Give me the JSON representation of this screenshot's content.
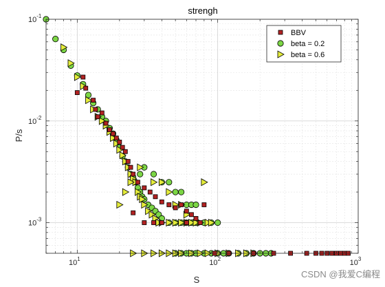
{
  "chart_data": {
    "type": "scatter",
    "title": "strengh",
    "xlabel": "S",
    "ylabel": "P/s",
    "xscale": "log",
    "yscale": "log",
    "xlim": [
      6,
      1000
    ],
    "ylim": [
      0.0005,
      0.1
    ],
    "grid": true,
    "legend_position": "top-right",
    "x_ticks": [
      {
        "base": "10",
        "exp": "1"
      },
      {
        "base": "10",
        "exp": "2"
      },
      {
        "base": "10",
        "exp": "3"
      }
    ],
    "y_ticks": [
      {
        "base": "10",
        "exp": "-3"
      },
      {
        "base": "10",
        "exp": "-2"
      },
      {
        "base": "10",
        "exp": "-1"
      }
    ],
    "series": [
      {
        "name": "BBV",
        "marker": "square",
        "color": "#b22222",
        "points": [
          [
            10,
            0.019
          ],
          [
            11,
            0.027
          ],
          [
            11.5,
            0.021
          ],
          [
            13,
            0.016
          ],
          [
            13.5,
            0.013
          ],
          [
            14,
            0.011
          ],
          [
            15,
            0.012
          ],
          [
            16,
            0.0095
          ],
          [
            17,
            0.0082
          ],
          [
            18,
            0.0075
          ],
          [
            19,
            0.0068
          ],
          [
            20,
            0.0062
          ],
          [
            21,
            0.0055
          ],
          [
            22,
            0.005
          ],
          [
            23,
            0.004
          ],
          [
            24,
            0.0035
          ],
          [
            25,
            0.003
          ],
          [
            27,
            0.0025
          ],
          [
            30,
            0.0022
          ],
          [
            33,
            0.002
          ],
          [
            36,
            0.0018
          ],
          [
            40,
            0.0016
          ],
          [
            45,
            0.0015
          ],
          [
            50,
            0.0014
          ],
          [
            55,
            0.0015
          ],
          [
            60,
            0.0013
          ],
          [
            65,
            0.0012
          ],
          [
            70,
            0.0011
          ],
          [
            75,
            0.001
          ],
          [
            80,
            0.0015
          ],
          [
            25,
            0.00125
          ],
          [
            30,
            0.001
          ],
          [
            35,
            0.001
          ],
          [
            40,
            0.001
          ],
          [
            60,
            0.001
          ],
          [
            95,
            0.0005
          ],
          [
            120,
            0.0005
          ],
          [
            180,
            0.0005
          ],
          [
            250,
            0.0005
          ],
          [
            330,
            0.0005
          ],
          [
            430,
            0.0005
          ],
          [
            500,
            0.0005
          ],
          [
            550,
            0.0005
          ],
          [
            600,
            0.0005
          ],
          [
            650,
            0.0005
          ],
          [
            700,
            0.0005
          ],
          [
            750,
            0.0005
          ],
          [
            800,
            0.0005
          ],
          [
            850,
            0.0005
          ]
        ]
      },
      {
        "name": "beta = 0.2",
        "marker": "circle",
        "color": "#7cd645",
        "points": [
          [
            6,
            0.1
          ],
          [
            7,
            0.064
          ],
          [
            8,
            0.05
          ],
          [
            9,
            0.035
          ],
          [
            10,
            0.028
          ],
          [
            11,
            0.023
          ],
          [
            12,
            0.018
          ],
          [
            13,
            0.015
          ],
          [
            14,
            0.013
          ],
          [
            15,
            0.011
          ],
          [
            16,
            0.01
          ],
          [
            17,
            0.0085
          ],
          [
            18,
            0.0075
          ],
          [
            19,
            0.0065
          ],
          [
            20,
            0.0055
          ],
          [
            21,
            0.0045
          ],
          [
            22,
            0.004
          ],
          [
            23,
            0.0035
          ],
          [
            24,
            0.003
          ],
          [
            25,
            0.0028
          ],
          [
            26,
            0.0025
          ],
          [
            27,
            0.0022
          ],
          [
            28,
            0.002
          ],
          [
            29,
            0.0018
          ],
          [
            30,
            0.0017
          ],
          [
            32,
            0.0015
          ],
          [
            34,
            0.0014
          ],
          [
            36,
            0.0013
          ],
          [
            38,
            0.0012
          ],
          [
            40,
            0.0011
          ],
          [
            45,
            0.001
          ],
          [
            50,
            0.001
          ],
          [
            55,
            0.001
          ],
          [
            60,
            0.001
          ],
          [
            65,
            0.001
          ],
          [
            70,
            0.001
          ],
          [
            80,
            0.001
          ],
          [
            90,
            0.001
          ],
          [
            100,
            0.001
          ],
          [
            30,
            0.0035
          ],
          [
            28,
            0.003
          ],
          [
            35,
            0.003
          ],
          [
            40,
            0.0025
          ],
          [
            45,
            0.0025
          ],
          [
            50,
            0.002
          ],
          [
            55,
            0.002
          ],
          [
            60,
            0.0015
          ],
          [
            65,
            0.0015
          ],
          [
            70,
            0.0015
          ],
          [
            50,
            0.0005
          ],
          [
            55,
            0.0005
          ],
          [
            60,
            0.0005
          ],
          [
            65,
            0.0005
          ],
          [
            70,
            0.0005
          ],
          [
            80,
            0.0005
          ],
          [
            90,
            0.0005
          ],
          [
            100,
            0.0005
          ],
          [
            110,
            0.0005
          ],
          [
            120,
            0.0005
          ],
          [
            140,
            0.0005
          ],
          [
            160,
            0.0005
          ],
          [
            180,
            0.0005
          ],
          [
            200,
            0.0005
          ],
          [
            220,
            0.0005
          ],
          [
            240,
            0.0005
          ]
        ]
      },
      {
        "name": "beta = 0.6",
        "marker": "triangle-right",
        "color": "#e4ec3a",
        "points": [
          [
            8,
            0.053
          ],
          [
            9,
            0.037
          ],
          [
            10,
            0.027
          ],
          [
            11,
            0.022
          ],
          [
            12,
            0.016
          ],
          [
            13,
            0.013
          ],
          [
            14,
            0.011
          ],
          [
            15,
            0.01
          ],
          [
            16,
            0.009
          ],
          [
            17,
            0.0078
          ],
          [
            18,
            0.0068
          ],
          [
            19,
            0.006
          ],
          [
            20,
            0.0052
          ],
          [
            21,
            0.0046
          ],
          [
            22,
            0.004
          ],
          [
            23,
            0.0035
          ],
          [
            24,
            0.003
          ],
          [
            25,
            0.0027
          ],
          [
            26,
            0.0025
          ],
          [
            27,
            0.002
          ],
          [
            28,
            0.0018
          ],
          [
            29,
            0.0017
          ],
          [
            30,
            0.0015
          ],
          [
            32,
            0.0013
          ],
          [
            34,
            0.0012
          ],
          [
            36,
            0.0011
          ],
          [
            38,
            0.001
          ],
          [
            40,
            0.001
          ],
          [
            45,
            0.001
          ],
          [
            50,
            0.001
          ],
          [
            55,
            0.001
          ],
          [
            60,
            0.001
          ],
          [
            65,
            0.001
          ],
          [
            70,
            0.001
          ],
          [
            75,
            0.001
          ],
          [
            80,
            0.0025
          ],
          [
            85,
            0.001
          ],
          [
            90,
            0.001
          ],
          [
            20,
            0.0015
          ],
          [
            24,
            0.0025
          ],
          [
            22,
            0.002
          ],
          [
            28,
            0.0035
          ],
          [
            35,
            0.0025
          ],
          [
            40,
            0.0025
          ],
          [
            45,
            0.002
          ],
          [
            50,
            0.0015
          ],
          [
            55,
            0.0015
          ],
          [
            60,
            0.0012
          ],
          [
            25,
            0.0005
          ],
          [
            30,
            0.0005
          ],
          [
            35,
            0.0005
          ],
          [
            40,
            0.0005
          ],
          [
            45,
            0.0005
          ],
          [
            50,
            0.0005
          ],
          [
            55,
            0.0005
          ],
          [
            65,
            0.0005
          ],
          [
            75,
            0.0005
          ],
          [
            85,
            0.0005
          ],
          [
            100,
            0.0005
          ],
          [
            120,
            0.0005
          ],
          [
            140,
            0.0005
          ],
          [
            160,
            0.0005
          ],
          [
            180,
            0.0005
          ]
        ]
      }
    ]
  },
  "watermark": "CSDN @我爱C编程"
}
